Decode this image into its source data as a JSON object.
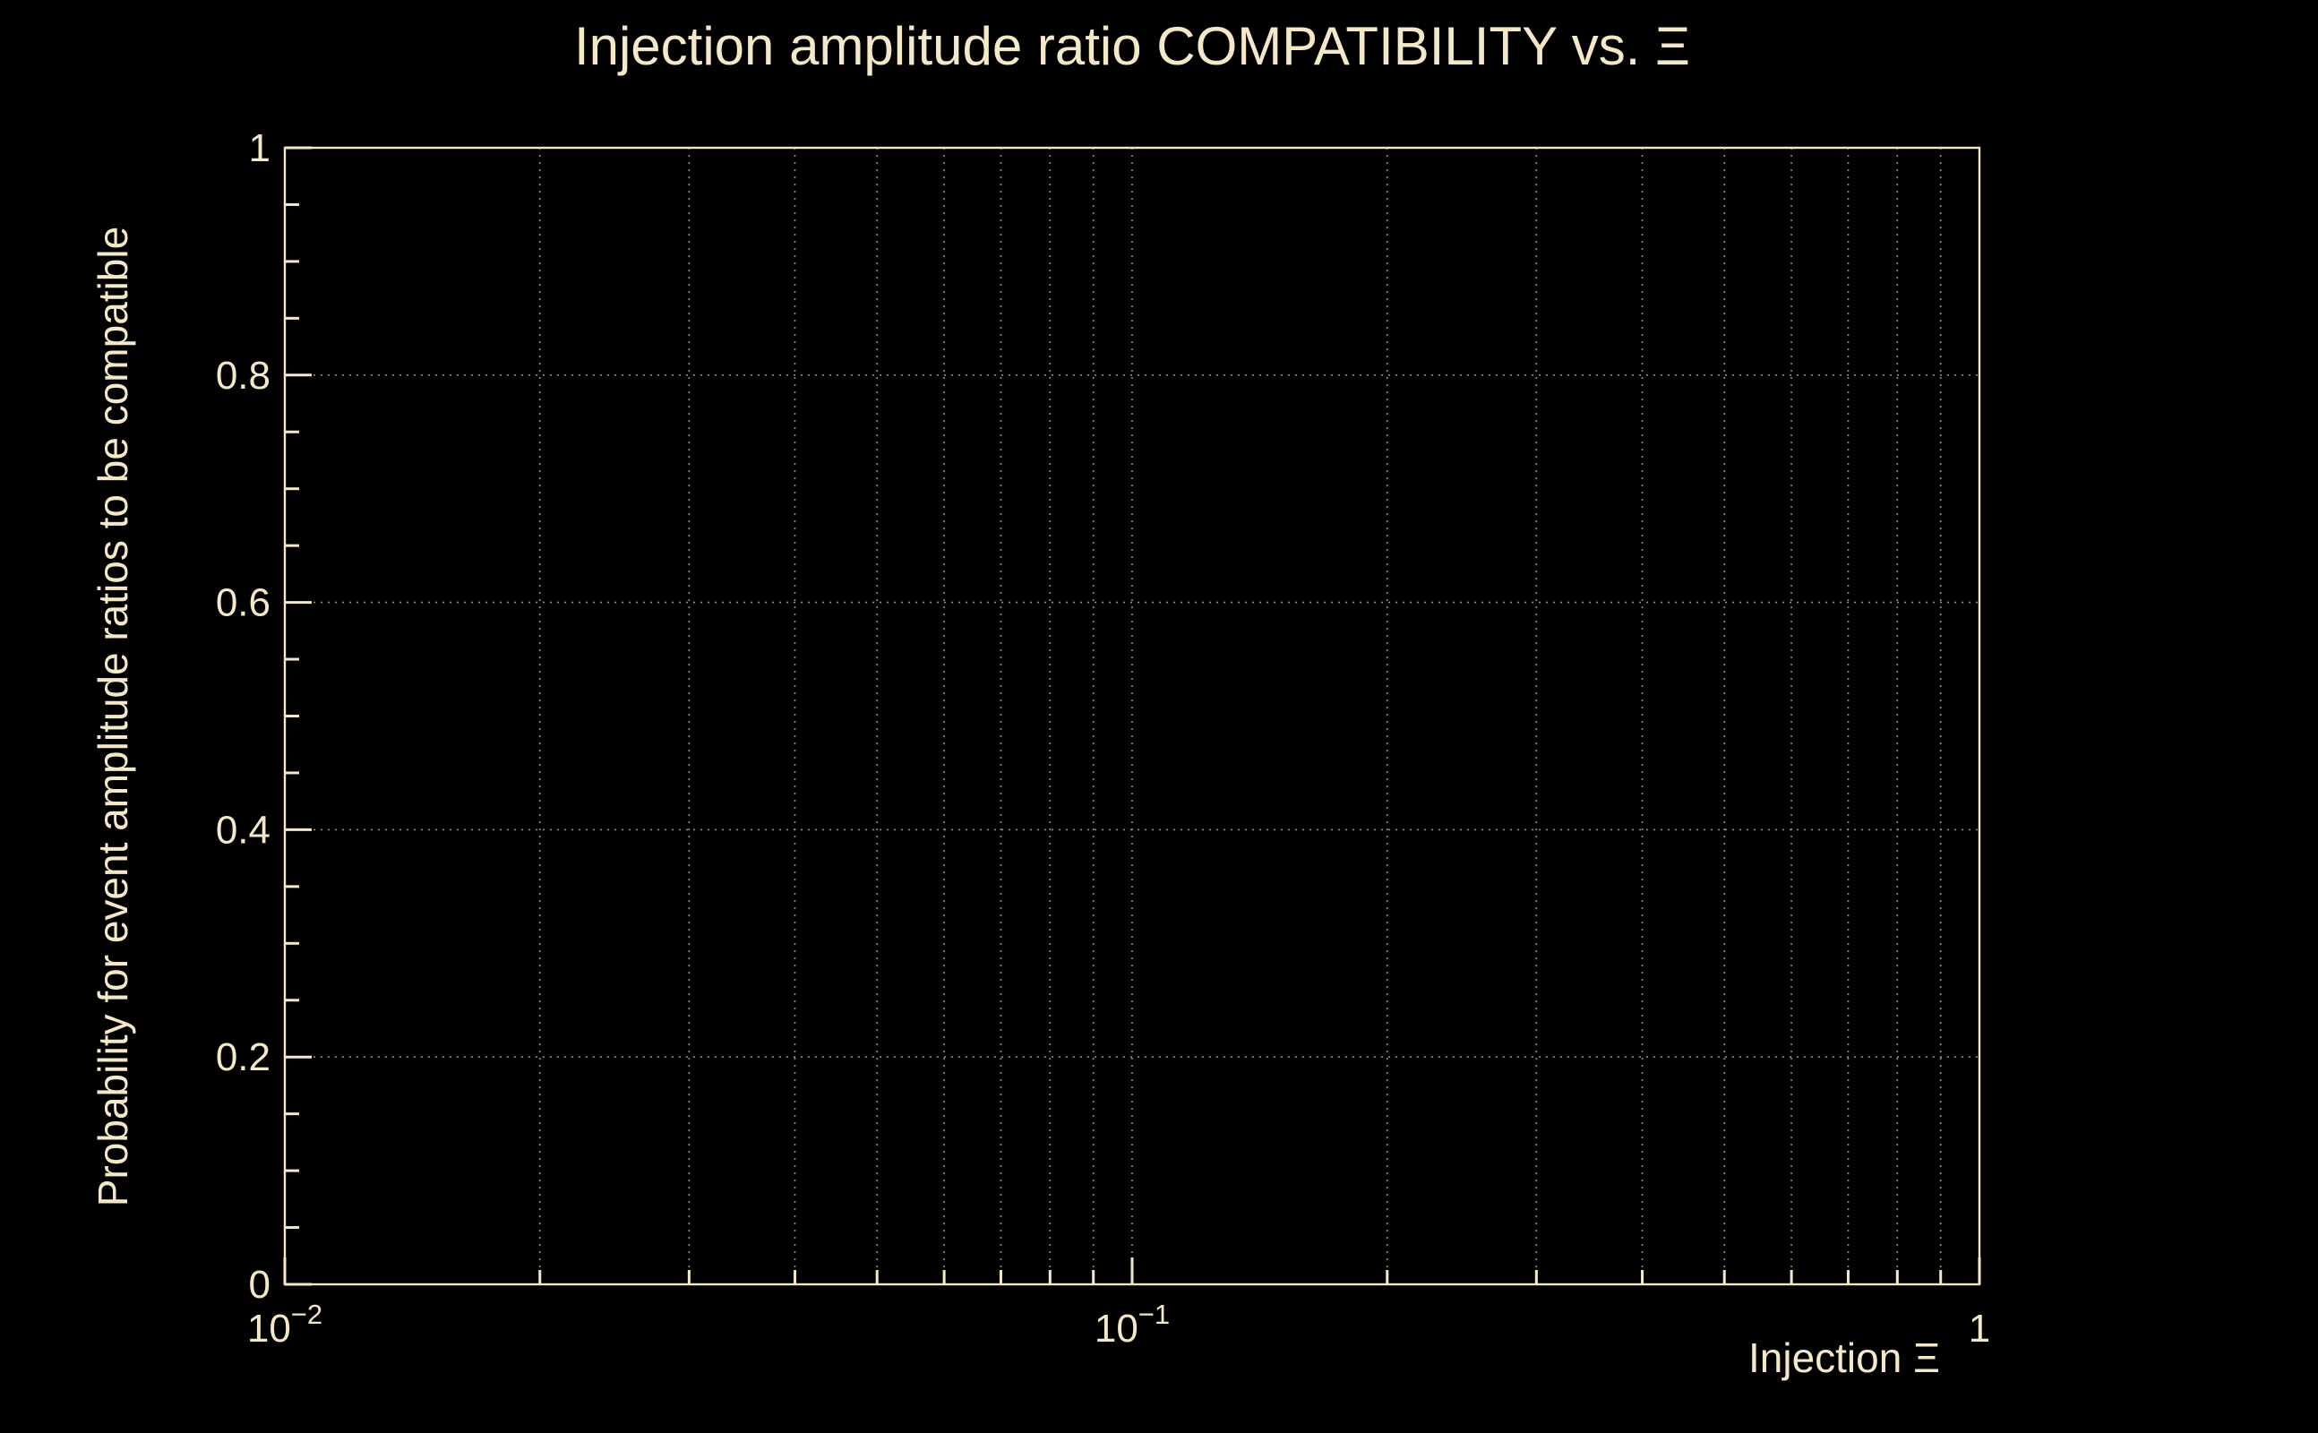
{
  "colors": {
    "background": "#000000",
    "foreground": "#f5e8c8",
    "grid": "#948e7c"
  },
  "chart_data": {
    "type": "scatter",
    "title": "Injection amplitude ratio COMPATIBILITY vs.  Ξ",
    "xlabel": "Injection Ξ",
    "ylabel": "Probability for event amplitude ratios to be compatible",
    "x_scale": "log",
    "y_scale": "linear",
    "xlim": [
      0.01,
      1
    ],
    "ylim": [
      0,
      1
    ],
    "x_major_ticks": [
      {
        "value": 0.01,
        "base": "10",
        "exp": "−2"
      },
      {
        "value": 0.1,
        "base": "10",
        "exp": "−1"
      },
      {
        "value": 1,
        "base": "1",
        "exp": ""
      }
    ],
    "y_major_ticks": [
      {
        "value": 0,
        "label": "0"
      },
      {
        "value": 0.2,
        "label": "0.2"
      },
      {
        "value": 0.4,
        "label": "0.4"
      },
      {
        "value": 0.6,
        "label": "0.6"
      },
      {
        "value": 0.8,
        "label": "0.8"
      },
      {
        "value": 1,
        "label": "1"
      }
    ],
    "y_minor_step": 0.05,
    "grid": true,
    "grid_style": "dotted",
    "legend": "none",
    "series": []
  }
}
